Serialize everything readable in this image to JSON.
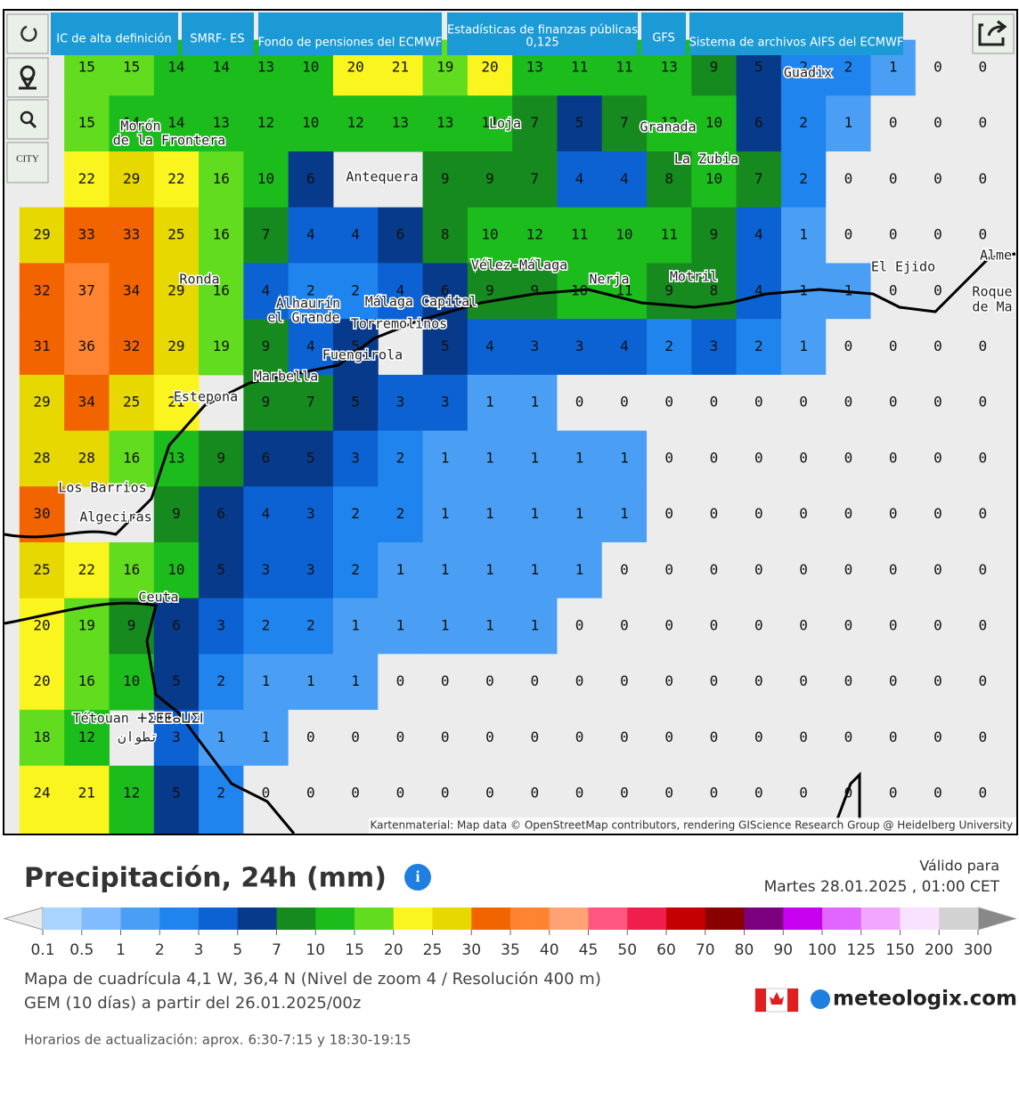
{
  "toolbar": {
    "tabs": [
      "IC de alta definición",
      "SMRF- ES",
      "Fondo de pensiones del ECMWF",
      "Estadísticas de finanzas públicas",
      "0,125",
      "GFS",
      "Sistema de archivos AIFS del ECMWF"
    ],
    "city_button": "CITY"
  },
  "map": {
    "attribution": "Kartenmaterial: Map data © OpenStreetMap contributors, rendering GIScience Research Group @ Heidelberg University",
    "places": [
      "Guadix",
      "Morón",
      "de la Frontera",
      "Loja",
      "Granada",
      "La Zubia",
      "Antequera",
      "Vélez-Málaga",
      "Nerja",
      "Motril",
      "El Ejido",
      "Alme",
      "Roque",
      "de Ma",
      "Ronda",
      "Alhaurín",
      "el Grande",
      "Málaga Capital",
      "Torremolinos",
      "Fuengirola",
      "Marbella",
      "Estepona",
      "Los Barrios",
      "Algeciras",
      "Ceuta",
      "Tétouan ⵜⵉⵟⵟⴰⵡⵉⵏ",
      "تطوان"
    ],
    "grid": {
      "rows": [
        [
          null,
          15,
          15,
          14,
          14,
          13,
          10,
          20,
          21,
          19,
          20,
          13,
          11,
          11,
          13,
          9,
          5,
          2,
          2,
          1,
          0,
          0
        ],
        [
          null,
          15,
          14,
          14,
          13,
          12,
          10,
          12,
          13,
          13,
          11,
          7,
          5,
          7,
          12,
          10,
          6,
          2,
          1,
          0,
          0,
          0
        ],
        [
          null,
          22,
          29,
          22,
          16,
          10,
          6,
          null,
          null,
          9,
          9,
          7,
          4,
          4,
          8,
          10,
          7,
          2,
          0,
          0,
          0,
          0
        ],
        [
          29,
          33,
          33,
          25,
          16,
          7,
          4,
          4,
          6,
          8,
          10,
          12,
          11,
          10,
          11,
          9,
          4,
          1,
          0,
          0,
          0,
          0
        ],
        [
          32,
          37,
          34,
          29,
          16,
          4,
          2,
          2,
          4,
          6,
          9,
          9,
          10,
          11,
          9,
          8,
          4,
          1,
          1,
          0,
          0,
          null
        ],
        [
          31,
          36,
          32,
          29,
          19,
          9,
          4,
          5,
          null,
          5,
          4,
          3,
          3,
          4,
          2,
          3,
          2,
          1,
          0,
          0,
          0,
          0
        ],
        [
          29,
          34,
          25,
          21,
          null,
          9,
          7,
          5,
          3,
          3,
          1,
          1,
          0,
          0,
          0,
          0,
          0,
          0,
          0,
          0,
          0,
          0
        ],
        [
          28,
          28,
          16,
          13,
          9,
          6,
          5,
          3,
          2,
          1,
          1,
          1,
          1,
          1,
          0,
          0,
          0,
          0,
          0,
          0,
          0,
          0
        ],
        [
          30,
          null,
          null,
          9,
          6,
          4,
          3,
          2,
          2,
          1,
          1,
          1,
          1,
          1,
          0,
          0,
          0,
          0,
          0,
          0,
          0,
          0
        ],
        [
          25,
          22,
          16,
          10,
          5,
          3,
          3,
          2,
          1,
          1,
          1,
          1,
          1,
          0,
          0,
          0,
          0,
          0,
          0,
          0,
          0,
          0
        ],
        [
          20,
          19,
          9,
          6,
          3,
          2,
          2,
          1,
          1,
          1,
          1,
          1,
          0,
          0,
          0,
          0,
          0,
          0,
          0,
          0,
          0,
          0
        ],
        [
          20,
          16,
          10,
          5,
          2,
          1,
          1,
          1,
          0,
          0,
          0,
          0,
          0,
          0,
          0,
          0,
          0,
          0,
          0,
          0,
          0,
          0
        ],
        [
          18,
          12,
          null,
          3,
          1,
          1,
          0,
          0,
          0,
          0,
          0,
          0,
          0,
          0,
          0,
          0,
          0,
          0,
          0,
          0,
          0,
          0
        ],
        [
          24,
          21,
          12,
          5,
          2,
          0,
          0,
          0,
          0,
          0,
          0,
          0,
          0,
          0,
          0,
          0,
          0,
          0,
          0,
          0,
          0,
          0
        ]
      ]
    }
  },
  "legend": {
    "title": "Precipitación, 24h (mm)",
    "ticks": [
      0.1,
      0.5,
      1,
      2,
      3,
      5,
      7,
      10,
      15,
      20,
      25,
      30,
      35,
      40,
      45,
      50,
      60,
      70,
      80,
      90,
      100,
      125,
      150,
      200,
      300
    ],
    "colors": [
      "#a9d4ff",
      "#80bcff",
      "#4a9ff5",
      "#1f84ee",
      "#0c62d2",
      "#073a8a",
      "#168a1e",
      "#1cbc1c",
      "#62dc1e",
      "#faf51e",
      "#e6d800",
      "#f26400",
      "#ff8432",
      "#ffa274",
      "#ff5680",
      "#f01e4c",
      "#c40000",
      "#8a0000",
      "#7a007e",
      "#c800f0",
      "#e066ff",
      "#f2a6ff",
      "#f8e2ff",
      "#d2d2d2"
    ],
    "under_color": "#ececec",
    "over_color": "#888888"
  },
  "info": {
    "valid_label": "Válido para",
    "valid_time": "Martes 28.01.2025 , 01:00 CET",
    "grid_map": "Mapa de cuadrícula 4,1 W, 36,4 N (Nivel de zoom 4 / Resolución 400 m)",
    "model": "GEM (10 días) a partir del 26.01.2025/00z",
    "brand": "meteologix.com",
    "updates": "Horarios de actualización: aprox. 6:30-7:15 y 18:30-19:15"
  }
}
